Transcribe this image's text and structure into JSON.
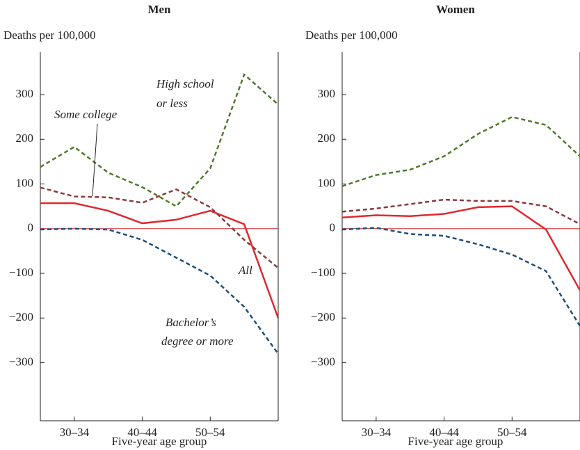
{
  "chart_data": [
    {
      "type": "line",
      "title": "Men",
      "y_label": "Deaths per 100,000",
      "x_label": "Five-year age group",
      "categories": [
        null,
        "30–34",
        null,
        "40–44",
        null,
        "50–54",
        null,
        null
      ],
      "ylim": [
        -430,
        395
      ],
      "yticks": [
        {
          "value": -300,
          "label": "−300"
        },
        {
          "value": -200,
          "label": "−200"
        },
        {
          "value": -100,
          "label": "−100"
        },
        0,
        100,
        200,
        300
      ],
      "zero_line": "#d0282e",
      "series": [
        {
          "color": "#4f7a2a",
          "dashed": true,
          "values": [
            138,
            183,
            125,
            93,
            50,
            135,
            345,
            278
          ]
        },
        {
          "color": "#8b3a3a",
          "dashed": true,
          "values": [
            92,
            72,
            70,
            58,
            88,
            48,
            -25,
            -88
          ]
        },
        {
          "color": "#e0282e",
          "dashed": false,
          "values": [
            57,
            57,
            40,
            12,
            20,
            40,
            10,
            -200
          ]
        },
        {
          "color": "#1f4e79",
          "dashed": true,
          "values": [
            -2,
            0,
            -2,
            -25,
            -65,
            -105,
            -175,
            -280
          ]
        }
      ],
      "annotations": [
        {
          "lines": [
            "High school",
            "or less"
          ]
        },
        {
          "lines": [
            "Some college"
          ]
        },
        {
          "lines": [
            "All"
          ]
        },
        {
          "lines": [
            "Bachelor’s",
            "degree or more"
          ]
        }
      ]
    },
    {
      "type": "line",
      "title": "Women",
      "y_label": "Deaths per 100,000",
      "x_label": "Five-year age group",
      "categories": [
        null,
        "30–34",
        null,
        "40–44",
        null,
        "50–54",
        null,
        null
      ],
      "ylim": [
        -430,
        395
      ],
      "yticks": [
        {
          "value": -300,
          "label": "−300"
        },
        {
          "value": -200,
          "label": "−200"
        },
        {
          "value": -100,
          "label": "−100"
        },
        0,
        100,
        200,
        300
      ],
      "zero_line": "#d0282e",
      "series": [
        {
          "color": "#4f7a2a",
          "dashed": true,
          "values": [
            95,
            120,
            132,
            162,
            212,
            250,
            232,
            162
          ]
        },
        {
          "color": "#8b3a3a",
          "dashed": true,
          "values": [
            38,
            45,
            55,
            65,
            62,
            62,
            50,
            10
          ]
        },
        {
          "color": "#e0282e",
          "dashed": false,
          "values": [
            25,
            30,
            28,
            33,
            48,
            50,
            -2,
            -138
          ]
        },
        {
          "color": "#1f4e79",
          "dashed": true,
          "values": [
            -2,
            2,
            -12,
            -16,
            -35,
            -58,
            -95,
            -218
          ]
        }
      ]
    }
  ]
}
